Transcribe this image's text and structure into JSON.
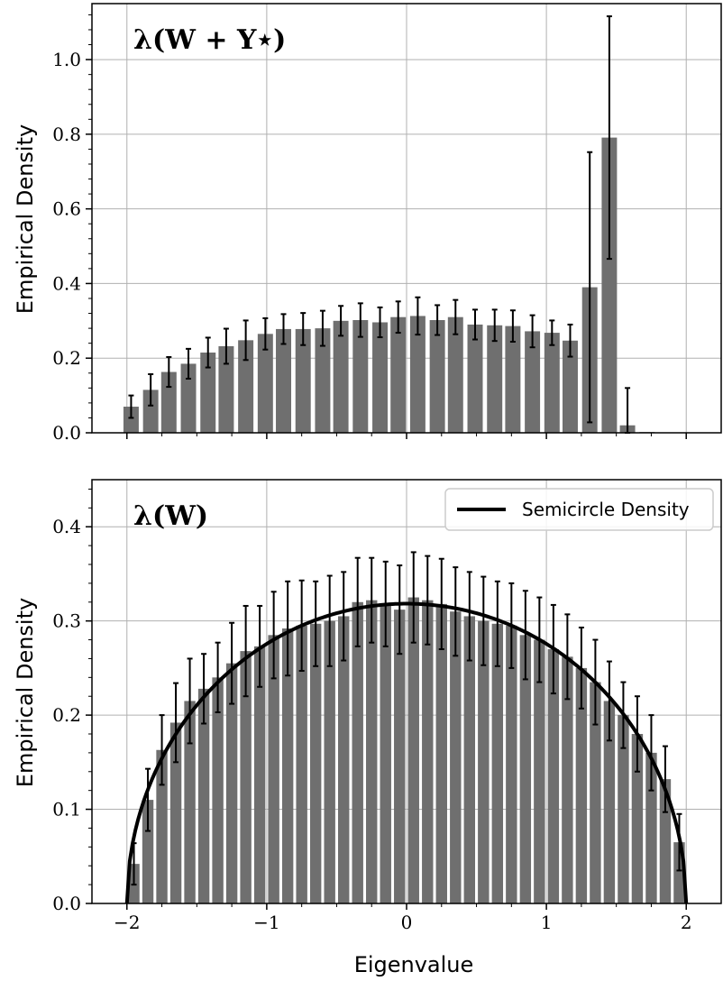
{
  "chart_data": [
    {
      "type": "bar",
      "panel_label": "λ(W + Y⋆)",
      "xlabel": "",
      "ylabel": "Empirical Density",
      "xlim": [
        -2.25,
        2.25
      ],
      "ylim": [
        0.0,
        1.15
      ],
      "yticks": [
        0.0,
        0.2,
        0.4,
        0.6,
        0.8,
        1.0
      ],
      "xticks": [
        -2,
        -1,
        0,
        1,
        2
      ],
      "xtick_labels_shown": false,
      "grid": true,
      "bar_color": "#6f6f6f",
      "bin_width": 0.1367,
      "bins": [
        {
          "x": -1.97,
          "y": 0.07,
          "err": 0.03
        },
        {
          "x": -1.83,
          "y": 0.115,
          "err": 0.042
        },
        {
          "x": -1.7,
          "y": 0.163,
          "err": 0.04
        },
        {
          "x": -1.56,
          "y": 0.185,
          "err": 0.04
        },
        {
          "x": -1.42,
          "y": 0.215,
          "err": 0.04
        },
        {
          "x": -1.29,
          "y": 0.232,
          "err": 0.047
        },
        {
          "x": -1.15,
          "y": 0.248,
          "err": 0.053
        },
        {
          "x": -1.01,
          "y": 0.265,
          "err": 0.042
        },
        {
          "x": -0.88,
          "y": 0.278,
          "err": 0.04
        },
        {
          "x": -0.74,
          "y": 0.278,
          "err": 0.043
        },
        {
          "x": -0.6,
          "y": 0.28,
          "err": 0.047
        },
        {
          "x": -0.47,
          "y": 0.3,
          "err": 0.04
        },
        {
          "x": -0.33,
          "y": 0.302,
          "err": 0.045
        },
        {
          "x": -0.19,
          "y": 0.296,
          "err": 0.04
        },
        {
          "x": -0.06,
          "y": 0.31,
          "err": 0.042
        },
        {
          "x": 0.08,
          "y": 0.313,
          "err": 0.05
        },
        {
          "x": 0.22,
          "y": 0.302,
          "err": 0.04
        },
        {
          "x": 0.35,
          "y": 0.31,
          "err": 0.046
        },
        {
          "x": 0.49,
          "y": 0.29,
          "err": 0.04
        },
        {
          "x": 0.63,
          "y": 0.288,
          "err": 0.042
        },
        {
          "x": 0.76,
          "y": 0.286,
          "err": 0.042
        },
        {
          "x": 0.9,
          "y": 0.272,
          "err": 0.043
        },
        {
          "x": 1.04,
          "y": 0.268,
          "err": 0.033
        },
        {
          "x": 1.17,
          "y": 0.247,
          "err": 0.043
        },
        {
          "x": 1.31,
          "y": 0.39,
          "err": 0.362
        },
        {
          "x": 1.45,
          "y": 0.791,
          "err": 0.325
        },
        {
          "x": 1.58,
          "y": 0.02,
          "err": 0.1
        },
        {
          "x": 1.72,
          "y": 0.002,
          "err": 0.0
        },
        {
          "x": 1.86,
          "y": 0.001,
          "err": 0.0
        },
        {
          "x": 1.99,
          "y": 0.001,
          "err": 0.0
        }
      ]
    },
    {
      "type": "bar",
      "panel_label": "λ(W)",
      "xlabel": "Eigenvalue",
      "ylabel": "Empirical Density",
      "xlim": [
        -2.25,
        2.25
      ],
      "ylim": [
        0.0,
        0.45
      ],
      "yticks": [
        0.0,
        0.1,
        0.2,
        0.3,
        0.4
      ],
      "xticks": [
        -2,
        -1,
        0,
        1,
        2
      ],
      "xtick_labels": [
        "−2",
        "−1",
        "0",
        "1",
        "2"
      ],
      "grid": true,
      "bar_color": "#6f6f6f",
      "bin_width": 0.1,
      "legend": {
        "label": "Semicircle Density",
        "placement": "upper right"
      },
      "line": {
        "name": "Semicircle Density",
        "function": "sqrt(4 - x^2) / (2*pi)",
        "domain": [
          -2,
          2
        ],
        "color": "#000000"
      },
      "bins": [
        {
          "x": -1.95,
          "y": 0.042,
          "err": 0.022
        },
        {
          "x": -1.85,
          "y": 0.11,
          "err": 0.033
        },
        {
          "x": -1.75,
          "y": 0.163,
          "err": 0.037
        },
        {
          "x": -1.65,
          "y": 0.192,
          "err": 0.042
        },
        {
          "x": -1.55,
          "y": 0.215,
          "err": 0.045
        },
        {
          "x": -1.45,
          "y": 0.228,
          "err": 0.037
        },
        {
          "x": -1.35,
          "y": 0.24,
          "err": 0.037
        },
        {
          "x": -1.25,
          "y": 0.255,
          "err": 0.043
        },
        {
          "x": -1.15,
          "y": 0.268,
          "err": 0.048
        },
        {
          "x": -1.05,
          "y": 0.273,
          "err": 0.043
        },
        {
          "x": -0.95,
          "y": 0.285,
          "err": 0.046
        },
        {
          "x": -0.85,
          "y": 0.292,
          "err": 0.05
        },
        {
          "x": -0.75,
          "y": 0.295,
          "err": 0.048
        },
        {
          "x": -0.65,
          "y": 0.297,
          "err": 0.045
        },
        {
          "x": -0.55,
          "y": 0.3,
          "err": 0.048
        },
        {
          "x": -0.45,
          "y": 0.305,
          "err": 0.047
        },
        {
          "x": -0.35,
          "y": 0.32,
          "err": 0.047
        },
        {
          "x": -0.25,
          "y": 0.322,
          "err": 0.045
        },
        {
          "x": -0.15,
          "y": 0.318,
          "err": 0.045
        },
        {
          "x": -0.05,
          "y": 0.312,
          "err": 0.047
        },
        {
          "x": 0.05,
          "y": 0.325,
          "err": 0.048
        },
        {
          "x": 0.15,
          "y": 0.322,
          "err": 0.047
        },
        {
          "x": 0.25,
          "y": 0.318,
          "err": 0.048
        },
        {
          "x": 0.35,
          "y": 0.31,
          "err": 0.047
        },
        {
          "x": 0.45,
          "y": 0.305,
          "err": 0.047
        },
        {
          "x": 0.55,
          "y": 0.3,
          "err": 0.047
        },
        {
          "x": 0.65,
          "y": 0.297,
          "err": 0.045
        },
        {
          "x": 0.75,
          "y": 0.295,
          "err": 0.045
        },
        {
          "x": 0.85,
          "y": 0.285,
          "err": 0.047
        },
        {
          "x": 0.95,
          "y": 0.28,
          "err": 0.045
        },
        {
          "x": 1.05,
          "y": 0.27,
          "err": 0.047
        },
        {
          "x": 1.15,
          "y": 0.262,
          "err": 0.045
        },
        {
          "x": 1.25,
          "y": 0.25,
          "err": 0.043
        },
        {
          "x": 1.35,
          "y": 0.235,
          "err": 0.045
        },
        {
          "x": 1.45,
          "y": 0.215,
          "err": 0.042
        },
        {
          "x": 1.55,
          "y": 0.2,
          "err": 0.035
        },
        {
          "x": 1.65,
          "y": 0.18,
          "err": 0.04
        },
        {
          "x": 1.75,
          "y": 0.16,
          "err": 0.04
        },
        {
          "x": 1.85,
          "y": 0.132,
          "err": 0.035
        },
        {
          "x": 1.95,
          "y": 0.065,
          "err": 0.03
        }
      ]
    }
  ]
}
